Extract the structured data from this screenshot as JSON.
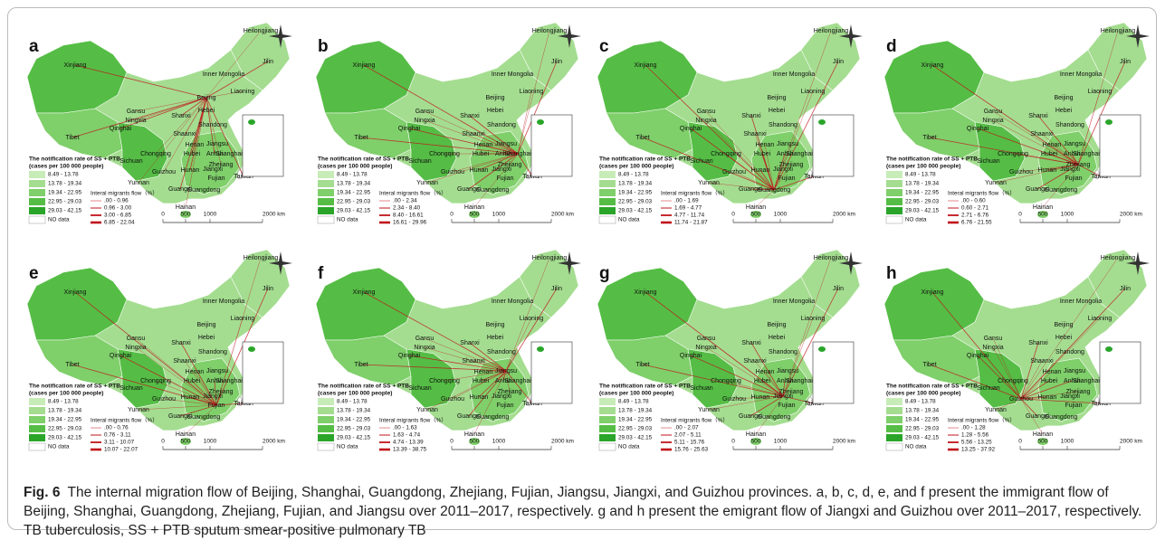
{
  "map": {
    "provinces": [
      "Heilongjiang",
      "Jilin",
      "Inner Mongolia",
      "Liaoning",
      "Xinjiang",
      "Beijing",
      "Gansu",
      "Shanxi",
      "Hebei",
      "Ningxia",
      "Qinghai",
      "Shandong",
      "Shaanxi",
      "Tibet",
      "Jiangsu",
      "Henan",
      "Anhui",
      "Shanghai",
      "Chongqing",
      "Hubei",
      "Sichuan",
      "Zhejiang",
      "Hunan",
      "Jiangxi",
      "Guizhou",
      "Taiwan",
      "Fujian",
      "Yunnan",
      "Guangxi",
      "Guangdong",
      "Hainan"
    ]
  },
  "legend": {
    "rate_title": [
      "The notification rate of SS + PTB",
      "(cases per 100 000 people)"
    ],
    "rate_classes": [
      "8.49 - 13.78",
      "13.78 - 19.34",
      "19.34 - 22.95",
      "22.95 - 29.03",
      "29.03 - 42.15"
    ],
    "no_data": "NO data",
    "flow_title": "Interal migrants flow（%）"
  },
  "scale": {
    "labels": [
      "0",
      "500",
      "1000",
      "2000 km"
    ]
  },
  "panels": [
    {
      "letter": "a",
      "flow_classes": [
        ".00 - 0.96",
        "0.96 - 3.00",
        "3.00 - 6.85",
        "6.85 - 22.04"
      ]
    },
    {
      "letter": "b",
      "flow_classes": [
        ".00 - 2.34",
        "2.34 - 8.40",
        "8.40 - 16.61",
        "16.61 - 29.96"
      ]
    },
    {
      "letter": "c",
      "flow_classes": [
        ".00 - 1.69",
        "1.69 - 4.77",
        "4.77 - 11.74",
        "11.74 - 21.87"
      ]
    },
    {
      "letter": "d",
      "flow_classes": [
        ".00 - 0.60",
        "0.60 - 2.71",
        "2.71 - 6.76",
        "6.76 - 21.55"
      ]
    },
    {
      "letter": "e",
      "flow_classes": [
        ".00 - 0.76",
        "0.76 - 3.11",
        "3.11 - 10.07",
        "10.07 - 22.07"
      ]
    },
    {
      "letter": "f",
      "flow_classes": [
        ".00 - 1.63",
        "1.63 - 4.74",
        "4.74 - 13.39",
        "13.39 - 38.75"
      ]
    },
    {
      "letter": "g",
      "flow_classes": [
        ".00 - 2.07",
        "2.07 - 5.11",
        "5.11 - 15.76",
        "15.76 - 25.63"
      ]
    },
    {
      "letter": "h",
      "flow_classes": [
        ".00 - 1.28",
        "1.28 - 5.56",
        "5.56 - 13.25",
        "13.25 - 37.92"
      ]
    }
  ],
  "caption": {
    "label": "Fig. 6",
    "text": "The internal migration flow of Beijing, Shanghai, Guangdong, Zhejiang, Fujian, Jiangsu, Jiangxi, and Guizhou provinces. a, b, c, d, e, and f present the immigrant flow of Beijing, Shanghai, Guangdong, Zhejiang, Fujian, and Jiangsu over 2011–2017, respectively. g and h present the emigrant flow of Jiangxi and Guizhou over 2011–2017, respectively. TB tuberculosis, SS + PTB sputum smear-positive pulmonary TB"
  }
}
